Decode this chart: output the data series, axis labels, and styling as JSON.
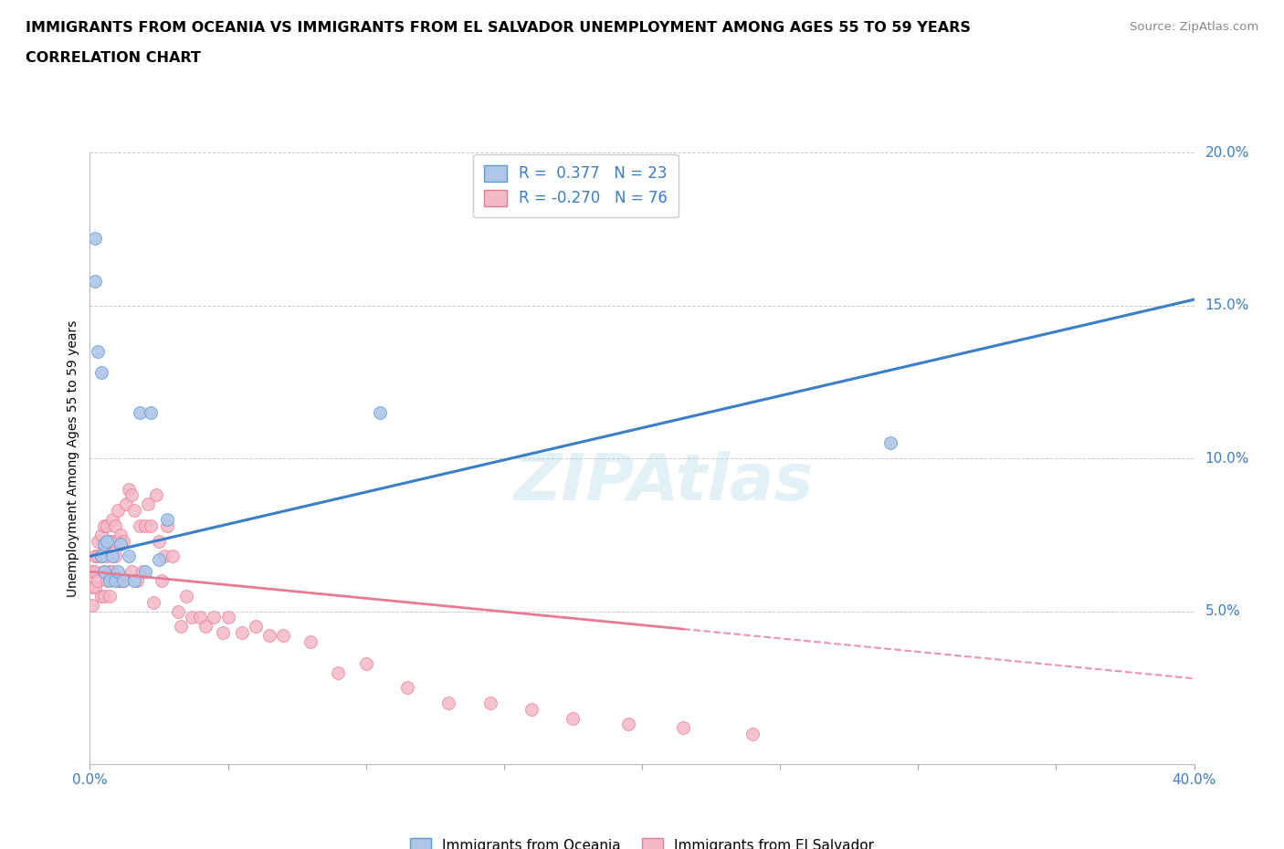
{
  "title_line1": "IMMIGRANTS FROM OCEANIA VS IMMIGRANTS FROM EL SALVADOR UNEMPLOYMENT AMONG AGES 55 TO 59 YEARS",
  "title_line2": "CORRELATION CHART",
  "source_text": "Source: ZipAtlas.com",
  "ylabel": "Unemployment Among Ages 55 to 59 years",
  "xmin": 0.0,
  "xmax": 0.4,
  "ymin": 0.0,
  "ymax": 0.2,
  "yticks": [
    0.05,
    0.1,
    0.15,
    0.2
  ],
  "ytick_labels": [
    "5.0%",
    "10.0%",
    "15.0%",
    "20.0%"
  ],
  "xticks": [
    0.0,
    0.05,
    0.1,
    0.15,
    0.2,
    0.25,
    0.3,
    0.35,
    0.4
  ],
  "xtick_labels": [
    "0.0%",
    "",
    "",
    "",
    "",
    "",
    "",
    "",
    "40.0%"
  ],
  "color_oceania_fill": "#aec6e8",
  "color_oceania_edge": "#5b9bd5",
  "color_salvador_fill": "#f4b8c8",
  "color_salvador_edge": "#e87a94",
  "color_line_oceania": "#3a7dc9",
  "color_line_salvador": "#e87a94",
  "r_oceania": 0.377,
  "n_oceania": 23,
  "r_salvador": -0.27,
  "n_salvador": 76,
  "watermark": "ZIPAtlas",
  "oceania_x": [
    0.002,
    0.002,
    0.003,
    0.004,
    0.004,
    0.005,
    0.005,
    0.006,
    0.007,
    0.008,
    0.009,
    0.01,
    0.011,
    0.012,
    0.014,
    0.016,
    0.018,
    0.02,
    0.022,
    0.025,
    0.028,
    0.105,
    0.29
  ],
  "oceania_y": [
    0.172,
    0.158,
    0.135,
    0.128,
    0.068,
    0.072,
    0.063,
    0.073,
    0.06,
    0.068,
    0.06,
    0.063,
    0.072,
    0.06,
    0.068,
    0.06,
    0.115,
    0.063,
    0.115,
    0.067,
    0.08,
    0.115,
    0.105
  ],
  "salvador_x": [
    0.001,
    0.001,
    0.001,
    0.002,
    0.002,
    0.002,
    0.003,
    0.003,
    0.003,
    0.004,
    0.004,
    0.004,
    0.005,
    0.005,
    0.005,
    0.005,
    0.006,
    0.006,
    0.006,
    0.007,
    0.007,
    0.007,
    0.008,
    0.008,
    0.008,
    0.009,
    0.009,
    0.01,
    0.01,
    0.01,
    0.011,
    0.011,
    0.012,
    0.012,
    0.013,
    0.014,
    0.015,
    0.015,
    0.016,
    0.017,
    0.018,
    0.019,
    0.02,
    0.021,
    0.022,
    0.023,
    0.024,
    0.025,
    0.026,
    0.027,
    0.028,
    0.03,
    0.032,
    0.033,
    0.035,
    0.037,
    0.04,
    0.042,
    0.045,
    0.048,
    0.05,
    0.055,
    0.06,
    0.065,
    0.07,
    0.08,
    0.09,
    0.1,
    0.115,
    0.13,
    0.145,
    0.16,
    0.175,
    0.195,
    0.215,
    0.24
  ],
  "salvador_y": [
    0.063,
    0.058,
    0.052,
    0.068,
    0.063,
    0.058,
    0.073,
    0.068,
    0.06,
    0.075,
    0.068,
    0.055,
    0.078,
    0.07,
    0.063,
    0.055,
    0.078,
    0.068,
    0.06,
    0.073,
    0.063,
    0.055,
    0.08,
    0.073,
    0.063,
    0.078,
    0.068,
    0.083,
    0.073,
    0.06,
    0.075,
    0.06,
    0.073,
    0.06,
    0.085,
    0.09,
    0.088,
    0.063,
    0.083,
    0.06,
    0.078,
    0.063,
    0.078,
    0.085,
    0.078,
    0.053,
    0.088,
    0.073,
    0.06,
    0.068,
    0.078,
    0.068,
    0.05,
    0.045,
    0.055,
    0.048,
    0.048,
    0.045,
    0.048,
    0.043,
    0.048,
    0.043,
    0.045,
    0.042,
    0.042,
    0.04,
    0.03,
    0.033,
    0.025,
    0.02,
    0.02,
    0.018,
    0.015,
    0.013,
    0.012,
    0.01
  ],
  "line_oceania_x0": 0.0,
  "line_oceania_y0": 0.068,
  "line_oceania_x1": 0.4,
  "line_oceania_y1": 0.152,
  "line_salvador_x0": 0.0,
  "line_salvador_y0": 0.063,
  "line_salvador_x1": 0.4,
  "line_salvador_y1": 0.028,
  "line_salvador_solid_end": 0.215,
  "fig_width": 14.06,
  "fig_height": 9.3,
  "dpi": 100
}
